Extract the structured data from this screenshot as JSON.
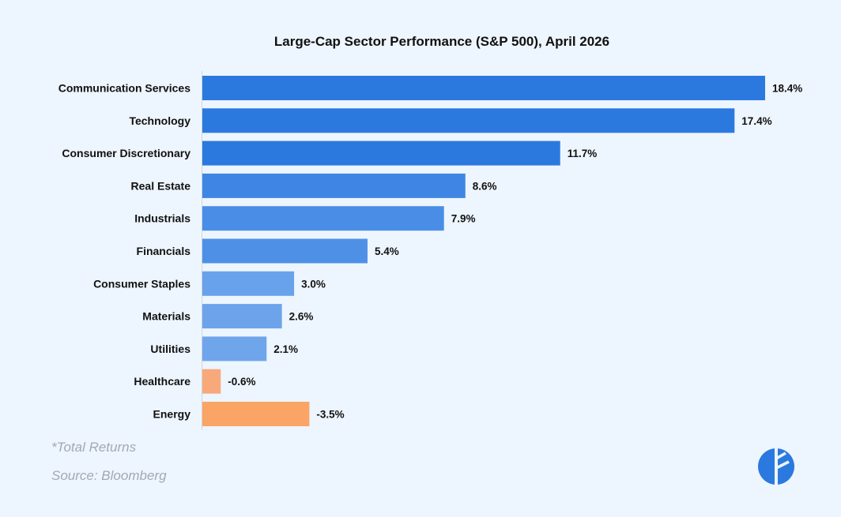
{
  "title": "Large-Cap Sector Performance (S&P 500), April 2026",
  "footnote": "*Total Returns",
  "source": "Source: Bloomberg",
  "logo_icon": "brand-logo-icon",
  "chart_data": {
    "type": "bar",
    "orientation": "horizontal",
    "title": "Large-Cap Sector Performance (S&P 500), April 2026",
    "categories": [
      "Communication Services",
      "Technology",
      "Consumer Discretionary",
      "Real Estate",
      "Industrials",
      "Financials",
      "Consumer Staples",
      "Materials",
      "Utilities",
      "Healthcare",
      "Energy"
    ],
    "values": [
      18.4,
      17.4,
      11.7,
      8.6,
      7.9,
      5.4,
      3.0,
      2.6,
      2.1,
      -0.6,
      -3.5
    ],
    "value_labels": [
      "18.4%",
      "17.4%",
      "11.7%",
      "8.6%",
      "7.9%",
      "5.4%",
      "3.0%",
      "2.6%",
      "2.1%",
      "-0.6%",
      "-3.5%"
    ],
    "colors": [
      "#2B79DF",
      "#2B79DF",
      "#2B79DF",
      "#3F86E4",
      "#4A8DE6",
      "#4E90E6",
      "#68A2EB",
      "#6CA3EB",
      "#6FA5EB",
      "#F8A97A",
      "#FAA466"
    ],
    "xlim": [
      0,
      18.4
    ],
    "grid": false,
    "legend": "none"
  }
}
